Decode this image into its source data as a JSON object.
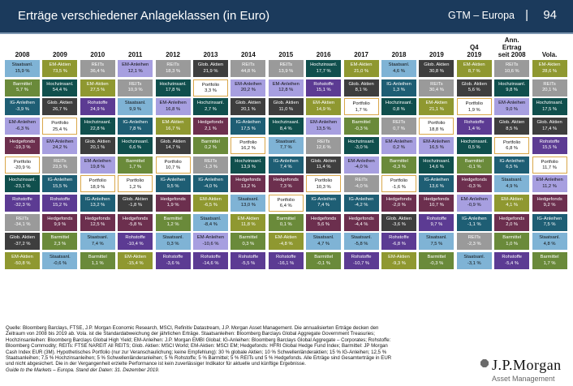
{
  "header": {
    "title": "Erträge verschiedener Anlageklassen (in Euro)",
    "subtitle": "GTM – Europa",
    "separator": "|",
    "page": "94"
  },
  "colors": {
    "Staatsanl.": "#7fb3d5",
    "Barmittel": "#6a8a3a",
    "IG-Anleihen": "#1e5e74",
    "EM-Anleihen": "#a79fe0",
    "Hedgefonds": "#6c2f4e",
    "Portfolio": "#ffffff",
    "REITs": "#9a9a9a",
    "Hochzinsanl.": "#104f4d",
    "Rohstoffe": "#5c3b93",
    "Glob. Aktien": "#3e3e3e",
    "EM-Aktien": "#8f9830",
    "text_dark": "#111111",
    "text_light": "#ffffff"
  },
  "chart_data": {
    "type": "table",
    "columns": [
      {
        "header": "2008",
        "cells": [
          [
            "Staatsanl.",
            "15,9 %"
          ],
          [
            "Barmittel",
            "5,7 %"
          ],
          [
            "IG-Anleihen",
            "-3,9 %"
          ],
          [
            "EM-Anleihen",
            "-6,3 %"
          ],
          [
            "Hedgefonds",
            "-19,3 %"
          ],
          [
            "Portfolio",
            "-20,9 %"
          ],
          [
            "Hochzinsanl.",
            "-23,1 %"
          ],
          [
            "Rohstoffe",
            "-32,3 %"
          ],
          [
            "REITs",
            "-34,1 %"
          ],
          [
            "Glob. Aktien",
            "-37,2 %"
          ],
          [
            "EM-Aktien",
            "-50,8 %"
          ]
        ]
      },
      {
        "header": "2009",
        "cells": [
          [
            "EM-Aktien",
            "73,5 %"
          ],
          [
            "Hochzinsanl.",
            "54,4 %"
          ],
          [
            "Glob. Aktien",
            "26,7 %"
          ],
          [
            "Portfolio",
            "25,4 %"
          ],
          [
            "EM-Anleihen",
            "24,2 %"
          ],
          [
            "REITs",
            "23,5 %"
          ],
          [
            "IG-Anleihen",
            "15,5 %"
          ],
          [
            "Rohstoffe",
            "15,2 %"
          ],
          [
            "Hedgefonds",
            "9,9 %"
          ],
          [
            "Barmittel",
            "2,3 %"
          ],
          [
            "Staatsanl.",
            "-0,6 %"
          ]
        ]
      },
      {
        "header": "2010",
        "cells": [
          [
            "REITs",
            "36,4 %"
          ],
          [
            "EM-Aktien",
            "27,5 %"
          ],
          [
            "Rohstoffe",
            "24,9 %"
          ],
          [
            "Hochzinsanl.",
            "22,8 %"
          ],
          [
            "Glob. Aktien",
            "20,1 %"
          ],
          [
            "EM-Anleihen",
            "19,8 %"
          ],
          [
            "Portfolio",
            "18,9 %"
          ],
          [
            "IG-Anleihen",
            "13,2 %"
          ],
          [
            "Hedgefonds",
            "12,5 %"
          ],
          [
            "Staatsanl.",
            "7,4 %"
          ],
          [
            "Barmittel",
            "1,1 %"
          ]
        ]
      },
      {
        "header": "2011",
        "cells": [
          [
            "EM-Anleihen",
            "12,1 %"
          ],
          [
            "REITs",
            "10,9 %"
          ],
          [
            "Staatsanl.",
            "9,9 %"
          ],
          [
            "IG-Anleihen",
            "7,8 %"
          ],
          [
            "Hochzinsanl.",
            "6,6 %"
          ],
          [
            "Barmittel",
            "1,7 %"
          ],
          [
            "Portfolio",
            "1,2 %"
          ],
          [
            "Glob. Aktien",
            "-1,8 %"
          ],
          [
            "Hedgefonds",
            "-5,8 %"
          ],
          [
            "Rohstoffe",
            "-10,4 %"
          ],
          [
            "EM-Aktien",
            "-15,4 %"
          ]
        ]
      },
      {
        "header": "2012",
        "cells": [
          [
            "REITs",
            "18,3 %"
          ],
          [
            "Hochzinsanl.",
            "17,8 %"
          ],
          [
            "EM-Anleihen",
            "16,8 %"
          ],
          [
            "EM-Aktien",
            "16,7 %"
          ],
          [
            "Glob. Aktien",
            "14,7 %"
          ],
          [
            "Portfolio",
            "10,7 %"
          ],
          [
            "IG-Anleihen",
            "9,5 %"
          ],
          [
            "Hedgefonds",
            "1,9 %"
          ],
          [
            "Barmittel",
            "1,2 %"
          ],
          [
            "Staatsanl.",
            "0,3 %"
          ],
          [
            "Rohstoffe",
            "-3,6 %"
          ]
        ]
      },
      {
        "header": "2013",
        "cells": [
          [
            "Glob. Aktien",
            "21,9 %"
          ],
          [
            "Portfolio",
            "3,3 %"
          ],
          [
            "Hochzinsanl.",
            "2,7 %"
          ],
          [
            "Hedgefonds",
            "2,1 %"
          ],
          [
            "Barmittel",
            "0,2 %"
          ],
          [
            "REITs",
            "-1,3 %"
          ],
          [
            "IG-Anleihen",
            "-4,0 %"
          ],
          [
            "EM-Aktien",
            "-6,5 %"
          ],
          [
            "Staatsanl.",
            "-8,4 %"
          ],
          [
            "EM-Anleihen",
            "-10,6 %"
          ],
          [
            "Rohstoffe",
            "-14,6 %"
          ]
        ]
      },
      {
        "header": "2014",
        "cells": [
          [
            "REITs",
            "44,8 %"
          ],
          [
            "EM-Anleihen",
            "20,2 %"
          ],
          [
            "Glob. Aktien",
            "20,1 %"
          ],
          [
            "IG-Anleihen",
            "17,5 %"
          ],
          [
            "Portfolio",
            "16,2 %"
          ],
          [
            "Hochzinsanl.",
            "13,9 %"
          ],
          [
            "Hedgefonds",
            "13,2 %"
          ],
          [
            "Staatsanl.",
            "13,0 %"
          ],
          [
            "EM-Aktien",
            "11,8 %"
          ],
          [
            "Barmittel",
            "0,3 %"
          ],
          [
            "Rohstoffe",
            "-5,5 %"
          ]
        ]
      },
      {
        "header": "2015",
        "cells": [
          [
            "REITs",
            "13,9 %"
          ],
          [
            "EM-Anleihen",
            "12,8 %"
          ],
          [
            "Glob. Aktien",
            "11,0 %"
          ],
          [
            "Hochzinsanl.",
            "8,4 %"
          ],
          [
            "Staatsanl.",
            "7,7 %"
          ],
          [
            "IG-Anleihen",
            "7,4 %"
          ],
          [
            "Hedgefonds",
            "7,3 %"
          ],
          [
            "Portfolio",
            "6,4 %"
          ],
          [
            "Barmittel",
            "0,1 %"
          ],
          [
            "EM-Aktien",
            "-4,8 %"
          ],
          [
            "Rohstoffe",
            "-16,1 %"
          ]
        ]
      },
      {
        "header": "2016",
        "cells": [
          [
            "Hochzinsanl.",
            "17,7 %"
          ],
          [
            "Rohstoffe",
            "15,1 %"
          ],
          [
            "EM-Aktien",
            "14,9 %"
          ],
          [
            "EM-Anleihen",
            "13,5 %"
          ],
          [
            "REITs",
            "12,6 %"
          ],
          [
            "Glob. Aktien",
            "11,4 %"
          ],
          [
            "Portfolio",
            "10,3 %"
          ],
          [
            "IG-Anleihen",
            "7,4 %"
          ],
          [
            "Hedgefonds",
            "5,6 %"
          ],
          [
            "Staatsanl.",
            "4,7 %"
          ],
          [
            "Barmittel",
            "-0,1 %"
          ]
        ]
      },
      {
        "header": "2017",
        "cells": [
          [
            "EM-Aktien",
            "21,0 %"
          ],
          [
            "Glob. Aktien",
            "8,1 %"
          ],
          [
            "Portfolio",
            "1,7 %"
          ],
          [
            "Barmittel",
            "-0,3 %"
          ],
          [
            "Hochzinsanl.",
            "-3,0 %"
          ],
          [
            "EM-Anleihen",
            "-4,0 %"
          ],
          [
            "REITs",
            "-4,0 %"
          ],
          [
            "IG-Anleihen",
            "-4,2 %"
          ],
          [
            "Hedgefonds",
            "-4,4 %"
          ],
          [
            "Staatsanl.",
            "-5,8 %"
          ],
          [
            "Rohstoffe",
            "-10,7 %"
          ]
        ]
      },
      {
        "header": "2018",
        "cells": [
          [
            "Staatsanl.",
            "4,6 %"
          ],
          [
            "IG-Anleihen",
            "1,3 %"
          ],
          [
            "Hochzinsanl.",
            "0,8 %"
          ],
          [
            "REITs",
            "0,7 %"
          ],
          [
            "EM-Anleihen",
            "0,2 %"
          ],
          [
            "Barmittel",
            "-0,3 %"
          ],
          [
            "Portfolio",
            "-1,6 %"
          ],
          [
            "Hedgefonds",
            "-2,0 %"
          ],
          [
            "Glob. Aktien",
            "-3,6 %"
          ],
          [
            "Rohstoffe",
            "-6,8 %"
          ],
          [
            "EM-Aktien",
            "-9,3 %"
          ]
        ]
      },
      {
        "header": "2019",
        "cells": [
          [
            "Glob. Aktien",
            "30,8 %"
          ],
          [
            "REITs",
            "30,4 %"
          ],
          [
            "EM-Aktien",
            "21,1 %"
          ],
          [
            "Portfolio",
            "18,8 %"
          ],
          [
            "EM-Anleihen",
            "16,5 %"
          ],
          [
            "Hochzinsanl.",
            "14,6 %"
          ],
          [
            "IG-Anleihen",
            "13,6 %"
          ],
          [
            "Hedgefonds",
            "10,7 %"
          ],
          [
            "Rohstoffe",
            "9,7 %"
          ],
          [
            "Staatsanl.",
            "7,5 %"
          ],
          [
            "Barmittel",
            "-0,3 %"
          ]
        ]
      },
      {
        "header": "Q4\n2019",
        "cells": [
          [
            "EM-Aktien",
            "8,7 %"
          ],
          [
            "Glob. Aktien",
            "5,6 %"
          ],
          [
            "Portfolio",
            "1,9 %"
          ],
          [
            "Rohstoffe",
            "1,4 %"
          ],
          [
            "Hochzinsanl.",
            "0,5 %"
          ],
          [
            "Barmittel",
            "-0,1 %"
          ],
          [
            "Hedgefonds",
            "-0,3 %"
          ],
          [
            "EM-Anleihen",
            "-0,9 %"
          ],
          [
            "IG-Anleihen",
            "-1,1 %"
          ],
          [
            "REITs",
            "-2,3 %"
          ],
          [
            "Staatsanl.",
            "-3,1 %"
          ]
        ]
      },
      {
        "header": "Ann.\nErtrag\nseit 2008",
        "cells": [
          [
            "REITs",
            "10,6 %"
          ],
          [
            "Hochzinsanl.",
            "9,8 %"
          ],
          [
            "EM-Anleihen",
            "9,0 %"
          ],
          [
            "Glob. Aktien",
            "8,5 %"
          ],
          [
            "Portfolio",
            "6,8 %"
          ],
          [
            "IG-Anleihen",
            "6,5 %"
          ],
          [
            "Staatsanl.",
            "4,9 %"
          ],
          [
            "EM-Aktien",
            "4,1 %"
          ],
          [
            "Hedgefonds",
            "2,0 %"
          ],
          [
            "Barmittel",
            "1,0 %"
          ],
          [
            "Rohstoffe",
            "-5,4 %"
          ]
        ]
      },
      {
        "header": "Vola.",
        "cells": [
          [
            "EM-Aktien",
            "28,6 %"
          ],
          [
            "REITs",
            "20,1 %"
          ],
          [
            "Hochzinsanl.",
            "17,5 %"
          ],
          [
            "Glob. Aktien",
            "17,4 %"
          ],
          [
            "Rohstoffe",
            "15,5 %"
          ],
          [
            "Portfolio",
            "11,7 %"
          ],
          [
            "EM-Anleihen",
            "11,2 %"
          ],
          [
            "Hedgefonds",
            "9,2 %"
          ],
          [
            "IG-Anleihen",
            "7,5 %"
          ],
          [
            "Staatsanl.",
            "4,8 %"
          ],
          [
            "Barmittel",
            "1,7 %"
          ]
        ]
      }
    ]
  },
  "footer": {
    "lines": [
      "Quelle: Bloomberg Barclays, FTSE, J.P. Morgan Economic Research, MSCI, Refinitiv Datastream, J.P. Morgan Asset Management. Die annualisierten Erträge decken den",
      "Zeitraum von 2008 bis 2019 ab. Vola. ist die Standardabweichung der jährlichen Erträge. Staatsanleihen: Bloomberg Barclays Global Aggregate Government Treasuries;",
      "Hochzinsanleihen: Bloomberg Barclays Global High Yield; EM-Anleihen: J.P. Morgan EMBI Global; IG-Anleihen: Bloomberg Barclays Global Aggregate – Corporates; Rohstoffe:",
      "Bloomberg Commodity; REITs: FTSE NAREIT All REITS; Glob. Aktien: MSCI World; EM-Aktien: MSCI EM; Hedgefonds: HFRI Global Hedge Fund Index; Barmittel: JP Morgan",
      "Cash Index EUR (3M). Hypothetisches Portfolio (nur zur Veranschaulichung; keine Empfehlung): 30 % globale Aktien; 10 % Schwellenländeraktien; 15 % IG-Anleihen; 12,5 %",
      "Staatsanleihen; 7,5 % Hochzinsanleihen; 5 % Schwellenländeranleihen; 5 % Rohstoffe; 5 % Barmittel; 5 % REITs und 5 % Hedgefonds. Alle Erträge sind Gesamterträge in EUR",
      "und nicht abgesichert. Die in der Vergangenheit erzielte Performance ist kein zuverlässiger Indikator für aktuelle und künftige Ergebnisse."
    ],
    "guide": "Guide to the Markets – Europa. Stand der Daten: 31. Dezember 2019."
  },
  "logo": {
    "name": "J.P.Morgan",
    "sub": "Asset Management"
  }
}
